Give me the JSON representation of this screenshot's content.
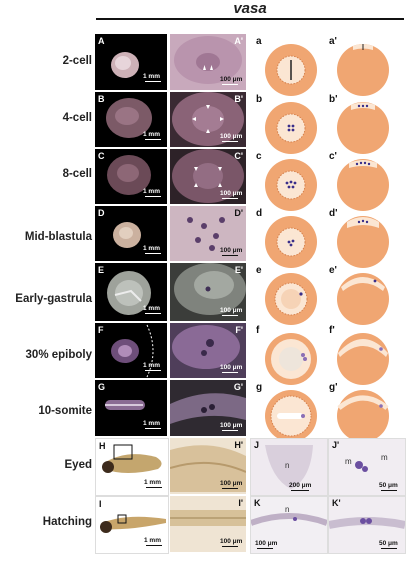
{
  "title": "vasa",
  "stages": [
    "2-cell",
    "4-cell",
    "8-cell",
    "Mid-blastula",
    "Early-gastrula",
    "30% epiboly",
    "10-somite",
    "Eyed",
    "Hatching"
  ],
  "photo_labels": [
    "A",
    "A'",
    "B",
    "B'",
    "C",
    "C'",
    "D",
    "D'",
    "E",
    "E'",
    "F",
    "F'",
    "G",
    "G'"
  ],
  "larva_labels": [
    "H",
    "H'",
    "I",
    "I'"
  ],
  "schematic_labels": [
    "a",
    "a'",
    "b",
    "b'",
    "c",
    "c'",
    "d",
    "d'",
    "e",
    "e'",
    "f",
    "f'",
    "g",
    "g'"
  ],
  "histology_labels": [
    "J",
    "J'",
    "K",
    "K'"
  ],
  "histology_marks": [
    "n",
    "m",
    "m",
    "n"
  ],
  "scale_1mm": "1 mm",
  "scale_100um": "100 μm",
  "scale_200um": "200 μm",
  "scale_50um": "50 μm",
  "colors": {
    "embryo": "#f0a672",
    "blastoderm": "#fbe6d3",
    "germ_dot": "#3a2e8a",
    "histology_bg": "#efeaf0"
  }
}
